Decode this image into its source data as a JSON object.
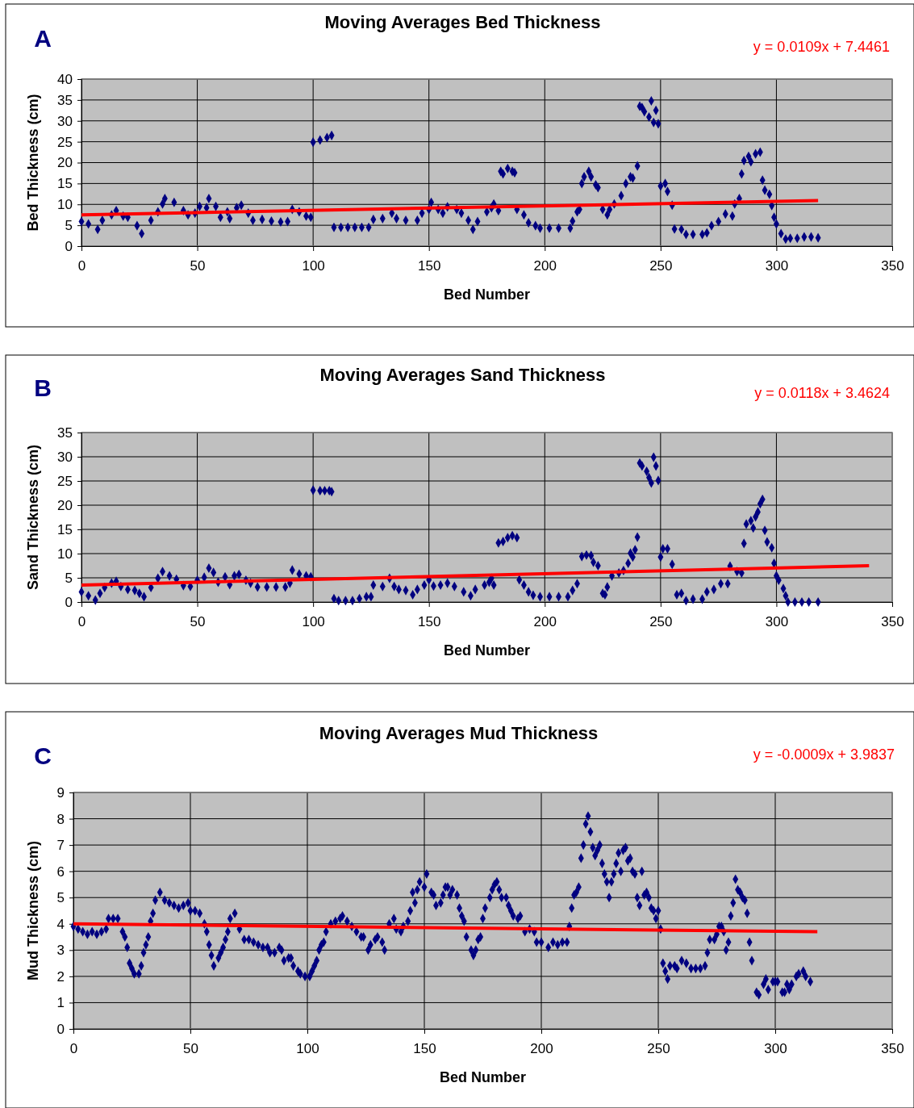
{
  "chart_data": [
    {
      "type": "scatter",
      "title": "Moving Averages Bed Thickness",
      "xlabel": "Bed Number",
      "ylabel": "Bed Thickness (cm)",
      "annotations": [
        "A",
        "y = 0.0109x + 7.4461"
      ],
      "xlim": [
        0,
        350
      ],
      "xticks": [
        0,
        50,
        100,
        150,
        200,
        250,
        300,
        350
      ],
      "ylim": [
        0,
        40
      ],
      "yticks": [
        0,
        5,
        10,
        15,
        20,
        25,
        30,
        35,
        40
      ],
      "grid": true,
      "series": [
        {
          "marker": "diamond",
          "color": "#000080",
          "x": [
            0,
            3,
            7,
            9,
            13,
            15,
            18,
            20,
            24,
            26,
            30,
            33,
            35,
            36,
            40,
            44,
            46,
            49,
            51,
            54,
            55,
            58,
            60,
            63,
            64,
            67,
            69,
            72,
            74,
            78,
            82,
            86,
            89,
            91,
            94,
            97,
            99,
            100,
            103,
            106,
            108,
            109,
            112,
            115,
            118,
            121,
            124,
            126,
            130,
            134,
            136,
            140,
            145,
            147,
            150,
            151,
            154,
            156,
            158,
            162,
            164,
            167,
            169,
            171,
            175,
            177,
            178,
            180,
            181,
            182,
            184,
            186,
            187,
            188,
            191,
            193,
            196,
            198,
            202,
            206,
            211,
            212,
            214,
            215,
            216,
            217,
            219,
            220,
            222,
            223,
            225,
            227,
            228,
            230,
            233,
            235,
            237,
            238,
            240,
            241,
            242,
            243,
            245,
            246,
            247,
            248,
            249,
            250,
            252,
            253,
            255,
            256,
            259,
            261,
            264,
            268,
            270,
            272,
            275,
            278,
            281,
            282,
            284,
            285,
            286,
            288,
            289,
            291,
            293,
            294,
            295,
            297,
            298,
            299,
            300,
            302,
            304,
            306,
            309,
            312,
            315,
            318
          ],
          "values": [
            5.9,
            5.3,
            4.0,
            6.2,
            7.5,
            8.5,
            7.2,
            6.9,
            4.9,
            3.0,
            6.2,
            8.2,
            10.1,
            11.4,
            10.5,
            8.5,
            7.5,
            7.9,
            9.5,
            9.2,
            11.4,
            9.5,
            6.9,
            8.2,
            6.6,
            9.2,
            9.8,
            7.9,
            6.2,
            6.4,
            6.0,
            5.8,
            5.9,
            8.8,
            8.2,
            7.2,
            6.9,
            24.9,
            25.4,
            26.0,
            26.5,
            4.5,
            4.5,
            4.5,
            4.5,
            4.5,
            4.5,
            6.4,
            6.6,
            7.9,
            6.6,
            6.2,
            6.2,
            7.9,
            8.8,
            10.5,
            8.8,
            7.9,
            9.4,
            8.8,
            7.9,
            6.2,
            4.0,
            5.9,
            8.2,
            9.2,
            10.1,
            8.5,
            17.9,
            17.3,
            18.6,
            17.9,
            17.6,
            8.8,
            7.5,
            5.6,
            4.9,
            4.3,
            4.3,
            4.3,
            4.3,
            6.0,
            8.2,
            8.8,
            15.0,
            16.6,
            17.9,
            16.6,
            14.7,
            14.0,
            8.8,
            7.5,
            8.8,
            10.1,
            12.1,
            15.0,
            16.6,
            16.3,
            19.2,
            33.5,
            33.2,
            32.2,
            30.9,
            34.8,
            29.6,
            32.5,
            29.3,
            14.4,
            15.0,
            13.1,
            9.8,
            4.1,
            4.0,
            2.8,
            2.8,
            2.8,
            3.2,
            4.9,
            5.9,
            7.7,
            7.2,
            10.1,
            11.4,
            17.3,
            20.5,
            21.5,
            20.2,
            22.1,
            22.5,
            15.8,
            13.4,
            12.4,
            9.7,
            6.9,
            5.3,
            3.0,
            1.7,
            1.9,
            1.9,
            2.2,
            2.2,
            2.0
          ]
        },
        {
          "type": "line",
          "color": "#ff0000",
          "x": [
            0,
            318
          ],
          "values": [
            7.5,
            10.9
          ]
        }
      ]
    },
    {
      "type": "scatter",
      "title": "Moving Averages Sand Thickness",
      "xlabel": "Bed Number",
      "ylabel": "Sand Thickness (cm)",
      "annotations": [
        "B",
        "y = 0.0118x + 3.4624"
      ],
      "xlim": [
        0,
        350
      ],
      "xticks": [
        0,
        50,
        100,
        150,
        200,
        250,
        300,
        350
      ],
      "ylim": [
        0,
        35
      ],
      "yticks": [
        0,
        5,
        10,
        15,
        20,
        25,
        30,
        35
      ],
      "grid": true,
      "series": [
        {
          "marker": "diamond",
          "color": "#000080",
          "x": [
            0,
            3,
            6,
            8,
            10,
            13,
            15,
            17,
            20,
            23,
            25,
            27,
            30,
            33,
            35,
            38,
            41,
            44,
            47,
            50,
            53,
            55,
            57,
            59,
            62,
            64,
            66,
            68,
            71,
            73,
            76,
            80,
            84,
            88,
            90,
            91,
            94,
            97,
            99,
            100,
            103,
            105,
            107,
            108,
            109,
            111,
            114,
            117,
            120,
            123,
            125,
            126,
            130,
            133,
            135,
            137,
            140,
            143,
            145,
            148,
            150,
            152,
            155,
            158,
            161,
            165,
            168,
            170,
            174,
            176,
            177,
            178,
            180,
            182,
            184,
            186,
            188,
            189,
            191,
            193,
            195,
            198,
            202,
            206,
            210,
            212,
            214,
            216,
            218,
            220,
            221,
            223,
            225,
            226,
            227,
            229,
            232,
            234,
            236,
            237,
            238,
            239,
            240,
            241,
            242,
            244,
            245,
            246,
            247,
            248,
            249,
            250,
            251,
            253,
            255,
            257,
            259,
            261,
            264,
            268,
            270,
            273,
            276,
            279,
            280,
            283,
            285,
            286,
            287,
            289,
            290,
            291,
            292,
            293,
            294,
            295,
            296,
            298,
            299,
            300,
            301,
            303,
            304,
            305,
            308,
            311,
            314,
            318
          ],
          "values": [
            2.1,
            1.3,
            0.4,
            1.8,
            3.0,
            3.9,
            4.3,
            3.2,
            2.6,
            2.4,
            1.8,
            1.1,
            3.0,
            4.9,
            6.3,
            5.4,
            4.7,
            3.4,
            3.2,
            4.5,
            5.1,
            7.0,
            6.1,
            4.1,
            5.2,
            3.6,
            5.4,
            5.7,
            4.5,
            3.9,
            3.1,
            3.1,
            3.1,
            3.1,
            3.9,
            6.6,
            5.8,
            5.4,
            5.2,
            23.1,
            23.0,
            23.0,
            23.0,
            22.8,
            0.7,
            0.3,
            0.3,
            0.3,
            0.7,
            1.1,
            1.1,
            3.5,
            3.2,
            4.9,
            3.2,
            2.6,
            2.4,
            1.5,
            2.6,
            3.5,
            4.6,
            3.3,
            3.5,
            3.9,
            3.2,
            2.1,
            1.3,
            2.6,
            3.5,
            4.1,
            4.9,
            3.5,
            12.2,
            12.5,
            13.3,
            13.7,
            13.3,
            4.6,
            3.5,
            2.1,
            1.4,
            1.1,
            1.1,
            1.1,
            1.1,
            2.4,
            3.8,
            9.4,
            9.7,
            9.6,
            8.2,
            7.5,
            1.8,
            1.5,
            3.1,
            5.4,
            6.0,
            6.5,
            8.0,
            10.1,
            9.3,
            10.8,
            13.4,
            28.7,
            28.1,
            27.0,
            25.7,
            24.6,
            29.9,
            28.1,
            25.1,
            9.3,
            11.0,
            11.0,
            7.8,
            1.5,
            1.8,
            0.3,
            0.6,
            0.6,
            2.1,
            2.6,
            3.8,
            3.8,
            7.4,
            6.3,
            6.0,
            12.1,
            16.1,
            16.8,
            15.3,
            17.6,
            18.6,
            20.3,
            21.2,
            14.8,
            12.4,
            11.2,
            8.0,
            5.4,
            4.5,
            2.8,
            1.3,
            0,
            0,
            0,
            0,
            0
          ]
        },
        {
          "type": "line",
          "color": "#ff0000",
          "x": [
            0,
            340
          ],
          "values": [
            3.5,
            7.5
          ]
        }
      ]
    },
    {
      "type": "scatter",
      "title": "Moving Averages Mud Thickness",
      "xlabel": "Bed Number",
      "ylabel": "Mud Thickness (cm)",
      "annotations": [
        "C",
        "y = -0.0009x + 3.9837"
      ],
      "xlim": [
        0,
        350
      ],
      "xticks": [
        0,
        50,
        100,
        150,
        200,
        250,
        300,
        350
      ],
      "ylim": [
        0,
        9
      ],
      "yticks": [
        0,
        1,
        2,
        3,
        4,
        5,
        6,
        7,
        8,
        9
      ],
      "grid": true,
      "series": [
        {
          "marker": "diamond",
          "color": "#000080",
          "x": [
            0,
            2,
            4,
            6,
            8,
            10,
            12,
            14,
            15,
            17,
            19,
            21,
            22,
            23,
            24,
            25,
            26,
            28,
            29,
            30,
            31,
            32,
            33,
            34,
            35,
            37,
            39,
            41,
            43,
            45,
            47,
            49,
            50,
            52,
            54,
            56,
            57,
            58,
            59,
            60,
            62,
            63,
            64,
            65,
            66,
            67,
            69,
            71,
            73,
            75,
            77,
            79,
            81,
            83,
            84,
            86,
            88,
            89,
            90,
            92,
            93,
            94,
            96,
            97,
            99,
            101,
            102,
            103,
            104,
            105,
            106,
            107,
            108,
            110,
            112,
            114,
            115,
            117,
            119,
            121,
            123,
            124,
            126,
            127,
            129,
            130,
            132,
            133,
            135,
            137,
            138,
            140,
            141,
            143,
            144,
            145,
            146,
            147,
            148,
            150,
            151,
            153,
            154,
            155,
            157,
            158,
            159,
            160,
            161,
            162,
            164,
            165,
            166,
            167,
            168,
            170,
            171,
            172,
            173,
            174,
            175,
            176,
            178,
            179,
            180,
            181,
            182,
            183,
            185,
            186,
            187,
            188,
            190,
            191,
            193,
            195,
            197,
            198,
            200,
            203,
            205,
            207,
            209,
            211,
            212,
            213,
            214,
            215,
            216,
            217,
            218,
            219,
            220,
            221,
            222,
            223,
            224,
            225,
            226,
            227,
            228,
            229,
            230,
            231,
            232,
            233,
            234,
            235,
            236,
            237,
            238,
            239,
            240,
            241,
            242,
            243,
            244,
            245,
            246,
            247,
            248,
            249,
            250,
            251,
            252,
            253,
            254,
            255,
            257,
            258,
            260,
            262,
            264,
            266,
            268,
            270,
            271,
            272,
            274,
            275,
            276,
            277,
            278,
            279,
            280,
            281,
            282,
            283,
            284,
            285,
            286,
            287,
            288,
            289,
            290,
            292,
            293,
            295,
            296,
            297,
            299,
            300,
            301,
            303,
            304,
            305,
            306,
            307,
            309,
            310,
            312,
            313,
            315
          ],
          "values": [
            3.9,
            3.8,
            3.7,
            3.6,
            3.7,
            3.6,
            3.7,
            3.8,
            4.2,
            4.2,
            4.2,
            3.7,
            3.5,
            3.1,
            2.5,
            2.3,
            2.1,
            2.1,
            2.4,
            2.9,
            3.2,
            3.5,
            4.1,
            4.4,
            4.9,
            5.2,
            4.9,
            4.8,
            4.7,
            4.6,
            4.7,
            4.8,
            4.5,
            4.5,
            4.4,
            4.0,
            3.7,
            3.2,
            2.8,
            2.4,
            2.7,
            2.9,
            3.1,
            3.4,
            3.7,
            4.2,
            4.4,
            3.8,
            3.4,
            3.4,
            3.3,
            3.2,
            3.1,
            3.1,
            2.9,
            2.9,
            3.1,
            3.0,
            2.6,
            2.7,
            2.7,
            2.4,
            2.2,
            2.1,
            2.0,
            2.0,
            2.2,
            2.4,
            2.6,
            3.0,
            3.2,
            3.3,
            3.7,
            4.0,
            4.1,
            4.2,
            4.3,
            4.1,
            3.9,
            3.7,
            3.5,
            3.5,
            3.0,
            3.2,
            3.4,
            3.5,
            3.3,
            3.0,
            4.0,
            4.2,
            3.8,
            3.7,
            3.9,
            4.1,
            4.5,
            5.2,
            4.8,
            5.3,
            5.6,
            5.4,
            5.9,
            5.2,
            5.1,
            4.7,
            4.8,
            5.1,
            5.4,
            5.4,
            5.1,
            5.3,
            5.1,
            4.6,
            4.3,
            4.1,
            3.5,
            3.0,
            2.8,
            3.0,
            3.4,
            3.5,
            4.2,
            4.6,
            5.0,
            5.3,
            5.5,
            5.6,
            5.3,
            5.0,
            5.0,
            4.7,
            4.5,
            4.3,
            4.2,
            4.3,
            3.7,
            3.8,
            3.7,
            3.3,
            3.3,
            3.1,
            3.3,
            3.2,
            3.3,
            3.3,
            3.9,
            4.6,
            5.1,
            5.2,
            5.4,
            6.5,
            7.0,
            7.8,
            8.1,
            7.5,
            6.9,
            6.6,
            6.8,
            7.0,
            6.3,
            5.9,
            5.6,
            5.0,
            5.6,
            5.9,
            6.3,
            6.7,
            6.0,
            6.8,
            6.9,
            6.4,
            6.5,
            6.0,
            5.9,
            5.0,
            4.7,
            6.0,
            5.1,
            5.2,
            5.0,
            4.6,
            4.5,
            4.2,
            4.5,
            3.8,
            2.5,
            2.2,
            1.9,
            2.4,
            2.4,
            2.3,
            2.6,
            2.5,
            2.3,
            2.3,
            2.3,
            2.4,
            2.9,
            3.4,
            3.4,
            3.6,
            3.9,
            3.9,
            3.7,
            3.0,
            3.3,
            4.3,
            4.8,
            5.7,
            5.3,
            5.2,
            5.0,
            4.9,
            4.4,
            3.3,
            2.6,
            1.4,
            1.3,
            1.7,
            1.9,
            1.5,
            1.8,
            1.8,
            1.8,
            1.4,
            1.4,
            1.7,
            1.5,
            1.7,
            2.0,
            2.1,
            2.2,
            2.0,
            1.8
          ]
        },
        {
          "type": "line",
          "color": "#ff0000",
          "x": [
            0,
            318
          ],
          "values": [
            4.0,
            3.7
          ]
        }
      ]
    }
  ]
}
